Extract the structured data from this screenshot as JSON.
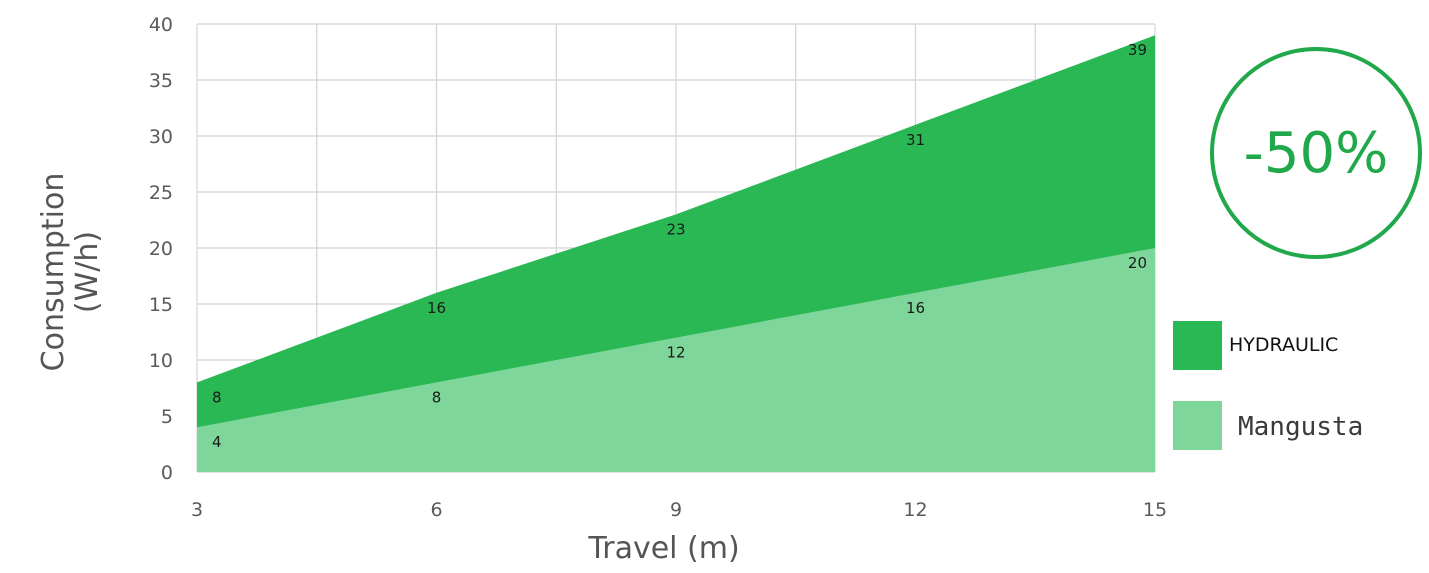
{
  "chart_data": {
    "type": "area",
    "xlabel": "Travel (m)",
    "ylabel_lines": [
      "Consumption",
      "(W/h)"
    ],
    "x": [
      3,
      6,
      9,
      12,
      15
    ],
    "x_ticks": [
      "3",
      "6",
      "9",
      "12",
      "15"
    ],
    "xlim": [
      3,
      15
    ],
    "y_ticks": [
      "0",
      "5",
      "10",
      "15",
      "20",
      "25",
      "30",
      "35",
      "40"
    ],
    "ylim": [
      0,
      40
    ],
    "grid": true,
    "legend_position": "right",
    "series": [
      {
        "name": "HYDRAULIC",
        "values": [
          8,
          16,
          23,
          31,
          39
        ],
        "color": "#2ab855"
      },
      {
        "name": "Mangusta",
        "values": [
          4,
          8,
          12,
          16,
          20
        ],
        "color": "#7fd69a"
      }
    ],
    "data_labels": {
      "HYDRAULIC": [
        "8",
        "16",
        "23",
        "31",
        "39"
      ],
      "Mangusta": [
        "4",
        "8",
        "12",
        "16",
        "20"
      ]
    },
    "colors": {
      "grid": "#d4d4d4",
      "badge": "#20a84a"
    }
  },
  "badge": {
    "text": "-50%"
  }
}
